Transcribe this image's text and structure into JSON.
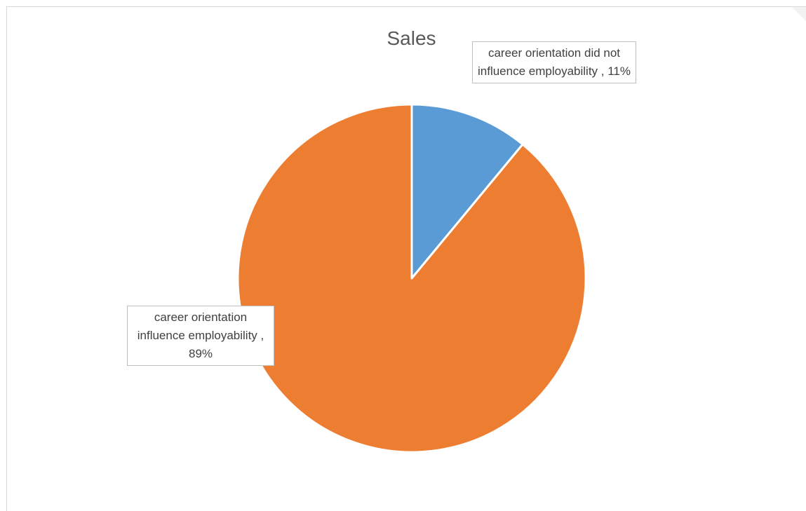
{
  "chart_data": {
    "type": "pie",
    "title": "Sales",
    "series": [
      {
        "values": [
          11,
          89
        ],
        "slices": [
          {
            "label": "career orientation did not influence employability",
            "value": 11,
            "data_label": "career orientation did not influence employability , 11%",
            "color": "#5b9bd5"
          },
          {
            "label": "career orientation influence employability",
            "value": 89,
            "data_label": "career orientation influence employability , 89%",
            "color": "#ed7d31"
          }
        ]
      }
    ],
    "start_angle": "12 o'clock",
    "direction": "clockwise",
    "legend": "none",
    "slice_border_color": "#ffffff"
  }
}
